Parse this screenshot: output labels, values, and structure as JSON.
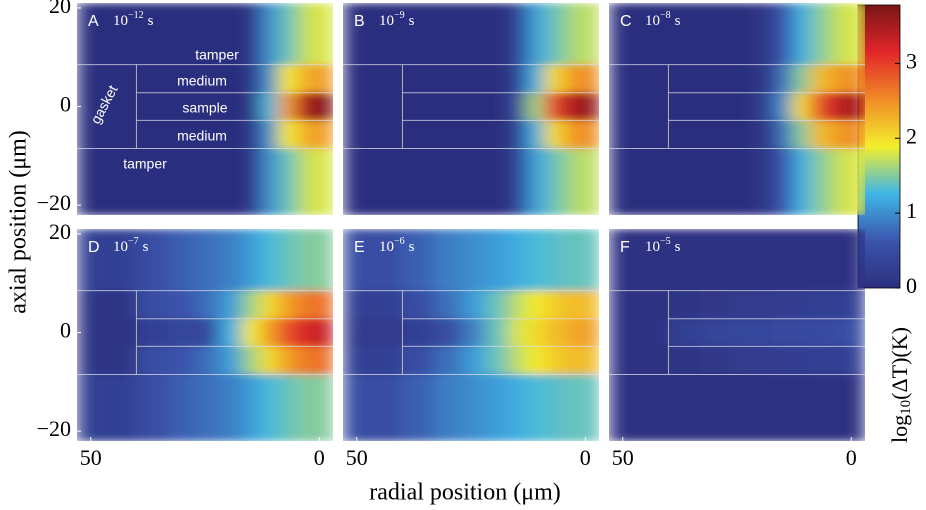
{
  "figure": {
    "x_label": "radial position (μm)",
    "y_label": "axial position (μm)",
    "colorbar": {
      "lim": [
        0,
        3.78
      ],
      "ticks": [
        0,
        1,
        2,
        3
      ],
      "label": {
        "prefix": "log",
        "sub": "10",
        "suffix": "(ΔT)(K)"
      },
      "colormap": [
        "#2c2f7e",
        "#3b55ad",
        "#3fb6e6",
        "#f3ee2c",
        "#f08b27",
        "#e2262a",
        "#7a1515"
      ]
    }
  },
  "chart_data": [
    {
      "type": "heatmap",
      "label": "A",
      "time": {
        "base": "10",
        "exp": "−12",
        "unit": "s"
      },
      "xlim": [
        53,
        -3
      ],
      "ylim": [
        -22,
        21
      ],
      "yticks": [
        20,
        0,
        {
          "value": -20,
          "label": "−20"
        }
      ],
      "xbins": [
        53,
        40,
        33,
        27,
        22,
        17,
        13,
        9,
        5,
        2,
        -3
      ],
      "ybins": [
        21,
        8.5,
        2.8,
        -2.8,
        -8.5,
        -22
      ],
      "annotations": [
        "tamper",
        "medium",
        "sample",
        "medium",
        "gasket",
        "tamper"
      ],
      "values": [
        [
          0,
          0,
          0,
          0,
          0,
          0.1,
          1.0,
          1.4,
          1.7,
          1.8
        ],
        [
          0,
          0,
          0,
          0,
          0,
          0.1,
          1.0,
          1.9,
          2.3,
          2.4
        ],
        [
          0,
          0,
          0,
          0,
          0,
          0.1,
          1.3,
          2.4,
          3.4,
          3.7
        ],
        [
          0,
          0,
          0,
          0,
          0,
          0.1,
          1.0,
          1.9,
          2.3,
          2.4
        ],
        [
          0,
          0,
          0,
          0,
          0,
          0.1,
          1.0,
          1.4,
          1.7,
          1.8
        ]
      ]
    },
    {
      "type": "heatmap",
      "label": "B",
      "time": {
        "base": "10",
        "exp": "−9",
        "unit": "s"
      },
      "xlim": [
        53,
        -3
      ],
      "ylim": [
        -22,
        21
      ],
      "xbins": [
        53,
        40,
        33,
        27,
        22,
        17,
        13,
        9,
        5,
        2,
        -3
      ],
      "ybins": [
        21,
        8.5,
        2.8,
        -2.8,
        -8.5,
        -22
      ],
      "values": [
        [
          0,
          0,
          0,
          0,
          0,
          0.3,
          1.1,
          1.4,
          1.6,
          1.7
        ],
        [
          0,
          0,
          0,
          0,
          0,
          0.3,
          1.2,
          2.0,
          2.4,
          2.5
        ],
        [
          0,
          0,
          0,
          0,
          0,
          0.4,
          1.6,
          2.9,
          3.4,
          3.6
        ],
        [
          0,
          0,
          0,
          0,
          0,
          0.3,
          1.2,
          2.0,
          2.4,
          2.5
        ],
        [
          0,
          0,
          0,
          0,
          0,
          0.3,
          1.1,
          1.4,
          1.6,
          1.7
        ]
      ]
    },
    {
      "type": "heatmap",
      "label": "C",
      "time": {
        "base": "10",
        "exp": "−8",
        "unit": "s"
      },
      "xlim": [
        53,
        -3
      ],
      "ylim": [
        -22,
        21
      ],
      "xbins": [
        53,
        40,
        33,
        27,
        22,
        17,
        13,
        9,
        5,
        2,
        -3
      ],
      "ybins": [
        21,
        8.5,
        2.8,
        -2.8,
        -8.5,
        -22
      ],
      "values": [
        [
          0,
          0,
          0,
          0,
          0.1,
          0.6,
          1.2,
          1.5,
          1.7,
          1.8
        ],
        [
          0,
          0,
          0,
          0,
          0.1,
          0.8,
          1.5,
          2.2,
          2.4,
          2.5
        ],
        [
          0,
          0,
          0,
          0,
          0.2,
          1.0,
          2.0,
          2.9,
          3.3,
          3.5
        ],
        [
          0,
          0,
          0,
          0,
          0.1,
          0.8,
          1.5,
          2.2,
          2.4,
          2.5
        ],
        [
          0,
          0,
          0,
          0,
          0.1,
          0.6,
          1.2,
          1.5,
          1.7,
          1.8
        ]
      ]
    },
    {
      "type": "heatmap",
      "label": "D",
      "time": {
        "base": "10",
        "exp": "−7",
        "unit": "s"
      },
      "xlim": [
        53,
        -3
      ],
      "ylim": [
        -22,
        21
      ],
      "xticks": [
        50,
        0
      ],
      "yticks": [
        20,
        0,
        {
          "value": -20,
          "label": "−20"
        }
      ],
      "xbins": [
        53,
        40,
        33,
        27,
        22,
        17,
        13,
        9,
        5,
        2,
        -3
      ],
      "ybins": [
        21,
        8.5,
        2.8,
        -2.8,
        -8.5,
        -22
      ],
      "values": [
        [
          0.3,
          0.5,
          0.7,
          0.8,
          0.9,
          1.1,
          1.3,
          1.4,
          1.5,
          1.5
        ],
        [
          0.1,
          0.5,
          0.6,
          0.8,
          1.1,
          1.6,
          2.0,
          2.4,
          2.6,
          2.7
        ],
        [
          0.1,
          0.3,
          0.4,
          0.4,
          1.2,
          1.9,
          2.4,
          2.9,
          3.2,
          3.3
        ],
        [
          0.1,
          0.5,
          0.6,
          0.8,
          1.1,
          1.6,
          2.0,
          2.4,
          2.6,
          2.7
        ],
        [
          0.3,
          0.5,
          0.7,
          0.8,
          0.9,
          1.1,
          1.3,
          1.4,
          1.5,
          1.5
        ]
      ]
    },
    {
      "type": "heatmap",
      "label": "E",
      "time": {
        "base": "10",
        "exp": "−6",
        "unit": "s"
      },
      "xlim": [
        53,
        -3
      ],
      "ylim": [
        -22,
        21
      ],
      "xticks": [
        50,
        0
      ],
      "xbins": [
        53,
        40,
        33,
        27,
        22,
        17,
        13,
        9,
        5,
        2,
        -3
      ],
      "ybins": [
        21,
        8.5,
        2.8,
        -2.8,
        -8.5,
        -22
      ],
      "values": [
        [
          0.5,
          0.7,
          0.9,
          1.0,
          1.1,
          1.2,
          1.3,
          1.35,
          1.4,
          1.4
        ],
        [
          0.3,
          0.5,
          0.8,
          1.1,
          1.4,
          1.7,
          1.9,
          2.1,
          2.2,
          2.2
        ],
        [
          0.2,
          0.3,
          0.5,
          0.9,
          1.4,
          1.8,
          2.0,
          2.2,
          2.3,
          2.4
        ],
        [
          0.3,
          0.5,
          0.8,
          1.1,
          1.4,
          1.7,
          1.9,
          2.1,
          2.2,
          2.2
        ],
        [
          0.5,
          0.7,
          0.9,
          1.0,
          1.1,
          1.2,
          1.3,
          1.35,
          1.4,
          1.4
        ]
      ]
    },
    {
      "type": "heatmap",
      "label": "F",
      "time": {
        "base": "10",
        "exp": "−5",
        "unit": "s"
      },
      "xlim": [
        53,
        -3
      ],
      "ylim": [
        -22,
        21
      ],
      "xticks": [
        50,
        0
      ],
      "xbins": [
        53,
        40,
        33,
        27,
        22,
        17,
        13,
        9,
        5,
        2,
        -3
      ],
      "ybins": [
        21,
        8.5,
        2.8,
        -2.8,
        -8.5,
        -22
      ],
      "values": [
        [
          0.05,
          0.05,
          0.05,
          0.05,
          0.05,
          0.05,
          0.05,
          0.05,
          0.05,
          0.05
        ],
        [
          0.05,
          0.1,
          0.15,
          0.2,
          0.2,
          0.25,
          0.25,
          0.3,
          0.3,
          0.3
        ],
        [
          0.05,
          0.3,
          0.35,
          0.4,
          0.4,
          0.45,
          0.45,
          0.45,
          0.5,
          0.5
        ],
        [
          0.05,
          0.1,
          0.15,
          0.2,
          0.2,
          0.25,
          0.25,
          0.3,
          0.3,
          0.3
        ],
        [
          0.05,
          0.05,
          0.05,
          0.05,
          0.05,
          0.05,
          0.05,
          0.05,
          0.05,
          0.05
        ]
      ]
    }
  ]
}
